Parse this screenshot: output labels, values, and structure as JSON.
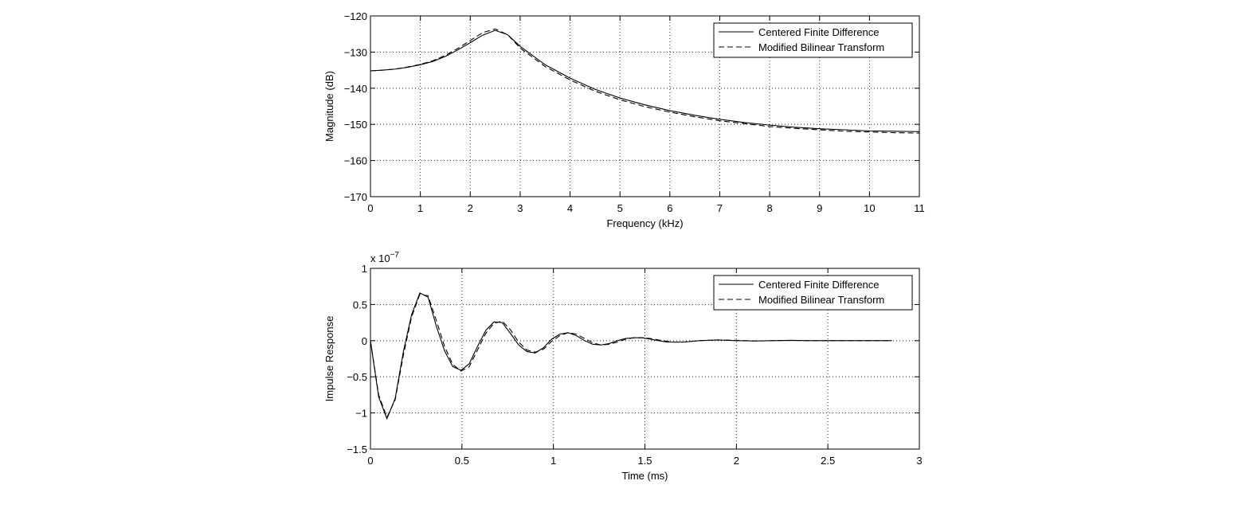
{
  "chart_data": [
    {
      "type": "line",
      "xlabel": "Frequency (kHz)",
      "ylabel": "Magnitude (dB)",
      "xlim": [
        0,
        11
      ],
      "ylim": [
        -170,
        -120
      ],
      "xticks": [
        0,
        1,
        2,
        3,
        4,
        5,
        6,
        7,
        8,
        9,
        10,
        11
      ],
      "yticks": [
        -170,
        -160,
        -150,
        -140,
        -130,
        -120
      ],
      "grid": true,
      "legend_position": "top-right",
      "series": [
        {
          "name": "Centered Finite Difference",
          "style": "solid",
          "x": [
            0,
            0.25,
            0.5,
            0.75,
            1.0,
            1.25,
            1.5,
            1.75,
            2.0,
            2.25,
            2.5,
            2.75,
            3.0,
            3.5,
            4.0,
            4.5,
            5.0,
            5.5,
            6.0,
            6.5,
            7.0,
            7.5,
            8.0,
            8.5,
            9.0,
            9.5,
            10.0,
            10.5,
            11.0
          ],
          "y": [
            -135.2,
            -135.0,
            -134.7,
            -134.2,
            -133.5,
            -132.6,
            -131.2,
            -129.4,
            -127.4,
            -125.3,
            -124.0,
            -125.2,
            -128.4,
            -133.5,
            -137.2,
            -140.3,
            -142.7,
            -144.6,
            -146.2,
            -147.5,
            -148.6,
            -149.5,
            -150.2,
            -150.8,
            -151.2,
            -151.5,
            -151.8,
            -151.9,
            -152.0
          ]
        },
        {
          "name": "Modified Bilinear Transform",
          "style": "dashed",
          "x": [
            0,
            0.25,
            0.5,
            0.75,
            1.0,
            1.25,
            1.5,
            1.75,
            2.0,
            2.25,
            2.5,
            2.75,
            3.0,
            3.5,
            4.0,
            4.5,
            5.0,
            5.5,
            6.0,
            6.5,
            7.0,
            7.5,
            8.0,
            8.5,
            9.0,
            9.5,
            10.0,
            10.5,
            11.0
          ],
          "y": [
            -135.2,
            -135.0,
            -134.7,
            -134.1,
            -133.4,
            -132.4,
            -130.9,
            -129.0,
            -126.8,
            -124.6,
            -123.6,
            -125.2,
            -128.9,
            -134.0,
            -137.7,
            -140.8,
            -143.2,
            -145.1,
            -146.6,
            -147.9,
            -149.0,
            -149.8,
            -150.6,
            -151.1,
            -151.5,
            -151.9,
            -152.1,
            -152.3,
            -152.4
          ]
        }
      ]
    },
    {
      "type": "line",
      "xlabel": "Time (ms)",
      "ylabel": "Impulse Response",
      "exponent_label": "x 10",
      "exponent_power": "−7",
      "xlim": [
        0,
        3
      ],
      "ylim": [
        -1.5,
        1
      ],
      "xticks": [
        0,
        0.5,
        1,
        1.5,
        2,
        2.5,
        3
      ],
      "yticks": [
        -1.5,
        -1,
        -0.5,
        0,
        0.5,
        1
      ],
      "grid": true,
      "legend_position": "top-right",
      "series": [
        {
          "name": "Centered Finite Difference",
          "style": "solid",
          "x": [
            0,
            0.045,
            0.09,
            0.135,
            0.18,
            0.225,
            0.27,
            0.315,
            0.36,
            0.405,
            0.45,
            0.495,
            0.54,
            0.585,
            0.63,
            0.675,
            0.72,
            0.765,
            0.81,
            0.855,
            0.9,
            0.945,
            0.99,
            1.035,
            1.08,
            1.125,
            1.17,
            1.215,
            1.26,
            1.305,
            1.35,
            1.395,
            1.44,
            1.485,
            1.53,
            1.575,
            1.62,
            1.665,
            1.71,
            1.8,
            1.9,
            2.0,
            2.1,
            2.2,
            2.3,
            2.4,
            2.5,
            2.6,
            2.7,
            2.85
          ],
          "y": [
            0,
            -0.78,
            -1.08,
            -0.8,
            -0.15,
            0.36,
            0.66,
            0.6,
            0.2,
            -0.14,
            -0.36,
            -0.41,
            -0.32,
            -0.08,
            0.14,
            0.26,
            0.25,
            0.1,
            -0.06,
            -0.15,
            -0.17,
            -0.1,
            0.02,
            0.09,
            0.11,
            0.07,
            0.0,
            -0.05,
            -0.06,
            -0.04,
            0.0,
            0.03,
            0.04,
            0.04,
            0.02,
            0.0,
            -0.02,
            -0.02,
            -0.02,
            0.0,
            0.01,
            0.0,
            -0.005,
            0.0,
            0.004,
            0.0,
            0.0,
            0.0,
            0.0,
            0.0
          ]
        },
        {
          "name": "Modified Bilinear Transform",
          "style": "dashed",
          "x": [
            0,
            0.045,
            0.09,
            0.135,
            0.18,
            0.225,
            0.27,
            0.315,
            0.36,
            0.405,
            0.45,
            0.495,
            0.54,
            0.585,
            0.63,
            0.675,
            0.72,
            0.765,
            0.81,
            0.855,
            0.9,
            0.945,
            0.99,
            1.035,
            1.08,
            1.125,
            1.17,
            1.215,
            1.26,
            1.305,
            1.35,
            1.395,
            1.44,
            1.485,
            1.53,
            1.575,
            1.62,
            1.665,
            1.71,
            1.8,
            1.9,
            2.0,
            2.1,
            2.2,
            2.3,
            2.4,
            2.5,
            2.6,
            2.7,
            2.85
          ],
          "y": [
            0,
            -0.75,
            -1.06,
            -0.82,
            -0.2,
            0.33,
            0.64,
            0.62,
            0.28,
            -0.08,
            -0.33,
            -0.42,
            -0.36,
            -0.13,
            0.1,
            0.24,
            0.27,
            0.15,
            -0.02,
            -0.13,
            -0.16,
            -0.12,
            -0.01,
            0.07,
            0.11,
            0.09,
            0.03,
            -0.03,
            -0.06,
            -0.05,
            -0.02,
            0.02,
            0.04,
            0.04,
            0.03,
            0.01,
            -0.01,
            -0.02,
            -0.02,
            0.0,
            0.01,
            0.005,
            -0.005,
            0.0,
            0.004,
            0.0,
            0.0,
            0.0,
            0.0,
            0.0
          ]
        }
      ]
    }
  ]
}
